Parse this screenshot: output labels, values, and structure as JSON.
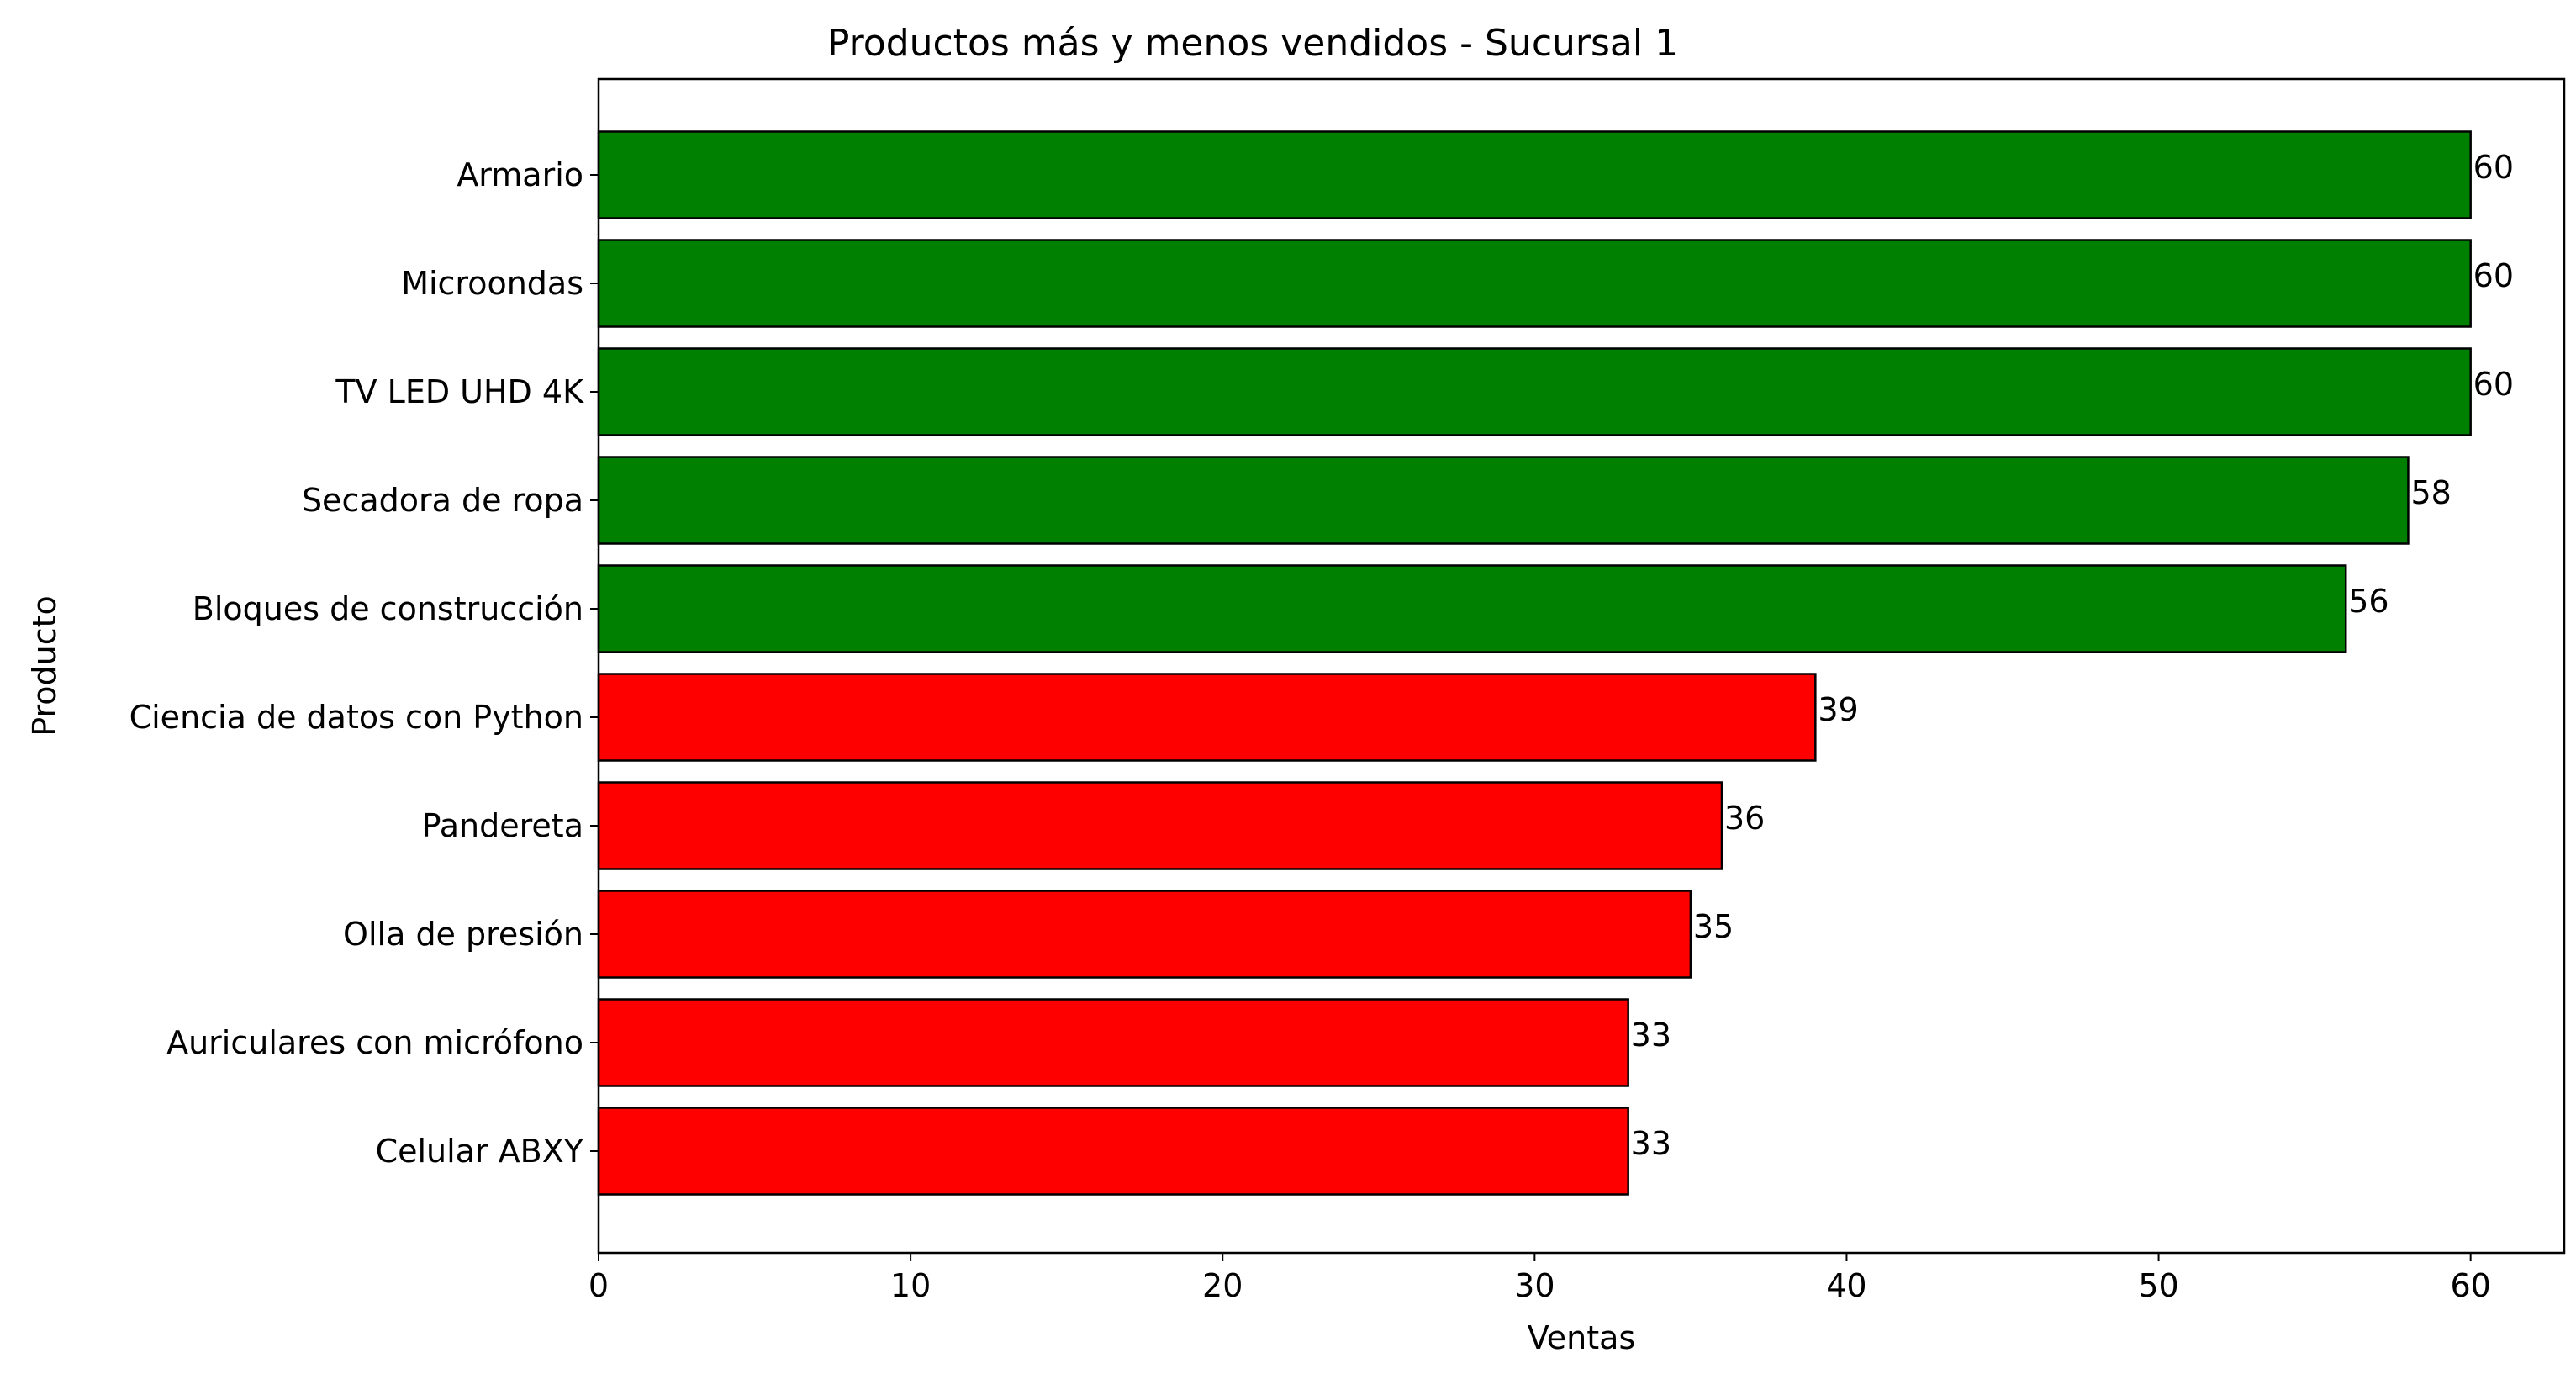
{
  "chart_data": {
    "type": "bar",
    "orientation": "horizontal",
    "title": "Productos más y menos vendidos - Sucursal 1",
    "xlabel": "Ventas",
    "ylabel": "Producto",
    "xlim": [
      0,
      63
    ],
    "xticks": [
      0,
      10,
      20,
      30,
      40,
      50,
      60
    ],
    "grid": false,
    "categories": [
      "Armario",
      "Microondas",
      "TV LED UHD 4K",
      "Secadora de ropa",
      "Bloques de construcción",
      "Ciencia de datos con Python",
      "Pandereta",
      "Olla de presión",
      "Auriculares con micrófono",
      "Celular ABXY"
    ],
    "values": [
      60,
      60,
      60,
      58,
      56,
      39,
      36,
      35,
      33,
      33
    ],
    "bar_colors": [
      "#008000",
      "#008000",
      "#008000",
      "#008000",
      "#008000",
      "#ff0000",
      "#ff0000",
      "#ff0000",
      "#ff0000",
      "#ff0000"
    ],
    "edge_color": "#000000"
  }
}
